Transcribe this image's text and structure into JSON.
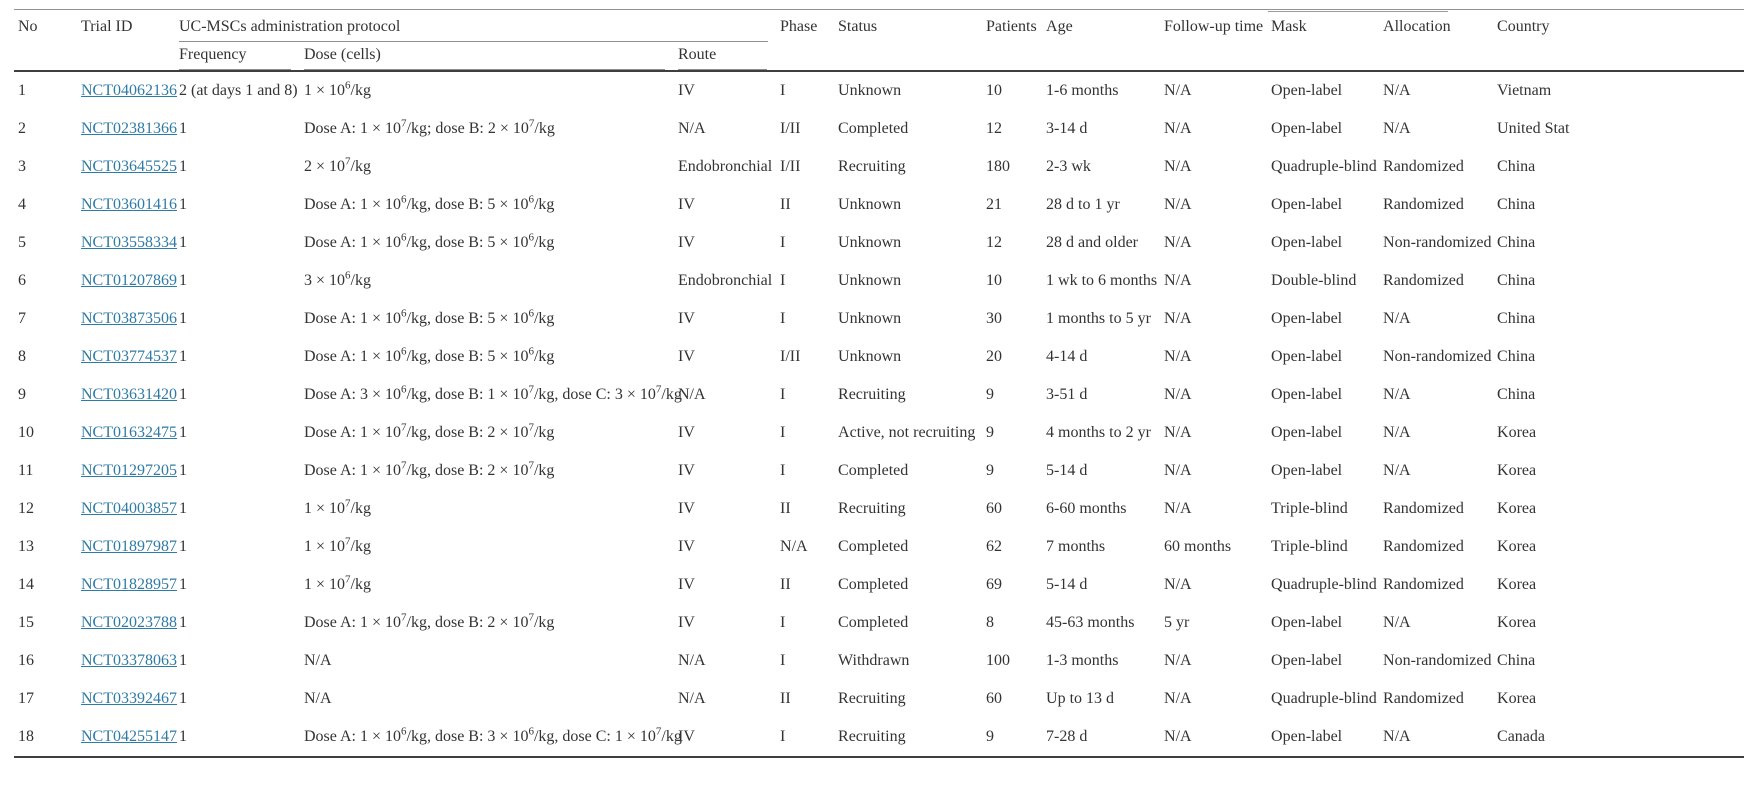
{
  "table": {
    "group_header": "UC-MSCs administration protocol",
    "header_labels": {
      "no": "No",
      "trial_id": "Trial ID",
      "frequency": "Frequency",
      "dose": "Dose (cells)",
      "route": "Route",
      "phase": "Phase",
      "status": "Status",
      "patients": "Patients",
      "age": "Age",
      "follow_up": "Follow-up time",
      "mask": "Mask",
      "allocation": "Allocation",
      "country": "Country"
    },
    "rows": [
      {
        "no": "1",
        "trial_id": "NCT04062136",
        "frequency": "2 (at days 1 and 8)",
        "dose": "1 × 10^6/kg",
        "route": "IV",
        "phase": "I",
        "status": "Unknown",
        "patients": "10",
        "age": "1-6 months",
        "follow_up": "N/A",
        "mask": "Open-label",
        "allocation": "N/A",
        "country": "Vietnam"
      },
      {
        "no": "2",
        "trial_id": "NCT02381366",
        "frequency": "1",
        "dose": "Dose A: 1 × 10^7/kg; dose B: 2 × 10^7/kg",
        "route": "N/A",
        "phase": "I/II",
        "status": "Completed",
        "patients": "12",
        "age": "3-14 d",
        "follow_up": "N/A",
        "mask": "Open-label",
        "allocation": "N/A",
        "country": "United Stat"
      },
      {
        "no": "3",
        "trial_id": "NCT03645525",
        "frequency": "1",
        "dose": "2 × 10^7/kg",
        "route": "Endobronchial",
        "phase": "I/II",
        "status": "Recruiting",
        "patients": "180",
        "age": "2-3 wk",
        "follow_up": "N/A",
        "mask": "Quadruple-blind",
        "allocation": "Randomized",
        "country": "China"
      },
      {
        "no": "4",
        "trial_id": "NCT03601416",
        "frequency": "1",
        "dose": "Dose A: 1 × 10^6/kg, dose B: 5 × 10^6/kg",
        "route": "IV",
        "phase": "II",
        "status": "Unknown",
        "patients": "21",
        "age": "28 d to 1 yr",
        "follow_up": "N/A",
        "mask": "Open-label",
        "allocation": "Randomized",
        "country": "China"
      },
      {
        "no": "5",
        "trial_id": "NCT03558334",
        "frequency": "1",
        "dose": "Dose A: 1 × 10^6/kg, dose B: 5 × 10^6/kg",
        "route": "IV",
        "phase": "I",
        "status": "Unknown",
        "patients": "12",
        "age": "28 d and older",
        "follow_up": "N/A",
        "mask": "Open-label",
        "allocation": "Non-randomized",
        "country": "China"
      },
      {
        "no": "6",
        "trial_id": "NCT01207869",
        "frequency": "1",
        "dose": "3 × 10^6/kg",
        "route": "Endobronchial",
        "phase": "I",
        "status": "Unknown",
        "patients": "10",
        "age": "1 wk to 6 months",
        "follow_up": "N/A",
        "mask": "Double-blind",
        "allocation": "Randomized",
        "country": "China"
      },
      {
        "no": "7",
        "trial_id": "NCT03873506",
        "frequency": "1",
        "dose": "Dose A: 1 × 10^6/kg, dose B: 5 × 10^6/kg",
        "route": "IV",
        "phase": "I",
        "status": "Unknown",
        "patients": "30",
        "age": "1 months to 5 yr",
        "follow_up": "N/A",
        "mask": "Open-label",
        "allocation": "N/A",
        "country": "China"
      },
      {
        "no": "8",
        "trial_id": "NCT03774537",
        "frequency": "1",
        "dose": "Dose A: 1 × 10^6/kg, dose B: 5 × 10^6/kg",
        "route": "IV",
        "phase": "I/II",
        "status": "Unknown",
        "patients": "20",
        "age": "4-14 d",
        "follow_up": "N/A",
        "mask": "Open-label",
        "allocation": "Non-randomized",
        "country": "China"
      },
      {
        "no": "9",
        "trial_id": "NCT03631420",
        "frequency": "1",
        "dose": "Dose A: 3 × 10^6/kg, dose B: 1 × 10^7/kg, dose C: 3 × 10^7/kg",
        "route": "N/A",
        "phase": "I",
        "status": "Recruiting",
        "patients": "9",
        "age": "3-51 d",
        "follow_up": "N/A",
        "mask": "Open-label",
        "allocation": "N/A",
        "country": "China"
      },
      {
        "no": "10",
        "trial_id": "NCT01632475",
        "frequency": "1",
        "dose": "Dose A: 1 × 10^7/kg, dose B: 2 × 10^7/kg",
        "route": "IV",
        "phase": "I",
        "status": "Active, not recruiting",
        "patients": "9",
        "age": "4 months to 2 yr",
        "follow_up": "N/A",
        "mask": "Open-label",
        "allocation": "N/A",
        "country": "Korea"
      },
      {
        "no": "11",
        "trial_id": "NCT01297205",
        "frequency": "1",
        "dose": "Dose A: 1 × 10^7/kg, dose B: 2 × 10^7/kg",
        "route": "IV",
        "phase": "I",
        "status": "Completed",
        "patients": "9",
        "age": "5-14 d",
        "follow_up": "N/A",
        "mask": "Open-label",
        "allocation": "N/A",
        "country": "Korea"
      },
      {
        "no": "12",
        "trial_id": "NCT04003857",
        "frequency": "1",
        "dose": "1 × 10^7/kg",
        "route": "IV",
        "phase": "II",
        "status": "Recruiting",
        "patients": "60",
        "age": "6-60 months",
        "follow_up": "N/A",
        "mask": "Triple-blind",
        "allocation": "Randomized",
        "country": "Korea"
      },
      {
        "no": "13",
        "trial_id": "NCT01897987",
        "frequency": "1",
        "dose": "1 × 10^7/kg",
        "route": "IV",
        "phase": "N/A",
        "status": "Completed",
        "patients": "62",
        "age": "7 months",
        "follow_up": "60 months",
        "mask": "Triple-blind",
        "allocation": "Randomized",
        "country": "Korea"
      },
      {
        "no": "14",
        "trial_id": "NCT01828957",
        "frequency": "1",
        "dose": "1 × 10^7/kg",
        "route": "IV",
        "phase": "II",
        "status": "Completed",
        "patients": "69",
        "age": "5-14 d",
        "follow_up": "N/A",
        "mask": "Quadruple-blind",
        "allocation": "Randomized",
        "country": "Korea"
      },
      {
        "no": "15",
        "trial_id": "NCT02023788",
        "frequency": "1",
        "dose": "Dose A: 1 × 10^7/kg, dose B: 2 × 10^7/kg",
        "route": "IV",
        "phase": "I",
        "status": "Completed",
        "patients": "8",
        "age": "45-63 months",
        "follow_up": "5 yr",
        "mask": "Open-label",
        "allocation": "N/A",
        "country": "Korea"
      },
      {
        "no": "16",
        "trial_id": "NCT03378063",
        "frequency": "1",
        "dose": "N/A",
        "route": "N/A",
        "phase": "I",
        "status": "Withdrawn",
        "patients": "100",
        "age": "1-3 months",
        "follow_up": "N/A",
        "mask": "Open-label",
        "allocation": "Non-randomized",
        "country": "China"
      },
      {
        "no": "17",
        "trial_id": "NCT03392467",
        "frequency": "1",
        "dose": "N/A",
        "route": "N/A",
        "phase": "II",
        "status": "Recruiting",
        "patients": "60",
        "age": "Up to 13 d",
        "follow_up": "N/A",
        "mask": "Quadruple-blind",
        "allocation": "Randomized",
        "country": "Korea"
      },
      {
        "no": "18",
        "trial_id": "NCT04255147",
        "frequency": "1",
        "dose": "Dose A: 1 × 10^6/kg, dose B: 3 × 10^6/kg, dose C: 1 × 10^7/kg",
        "route": "IV",
        "phase": "I",
        "status": "Recruiting",
        "patients": "9",
        "age": "7-28 d",
        "follow_up": "N/A",
        "mask": "Open-label",
        "allocation": "N/A",
        "country": "Canada"
      }
    ]
  },
  "colors": {
    "text": "#333333",
    "link": "#2e7ba6",
    "rule_light": "#919191",
    "rule_dark": "#3f3f3f",
    "background": "#ffffff"
  }
}
